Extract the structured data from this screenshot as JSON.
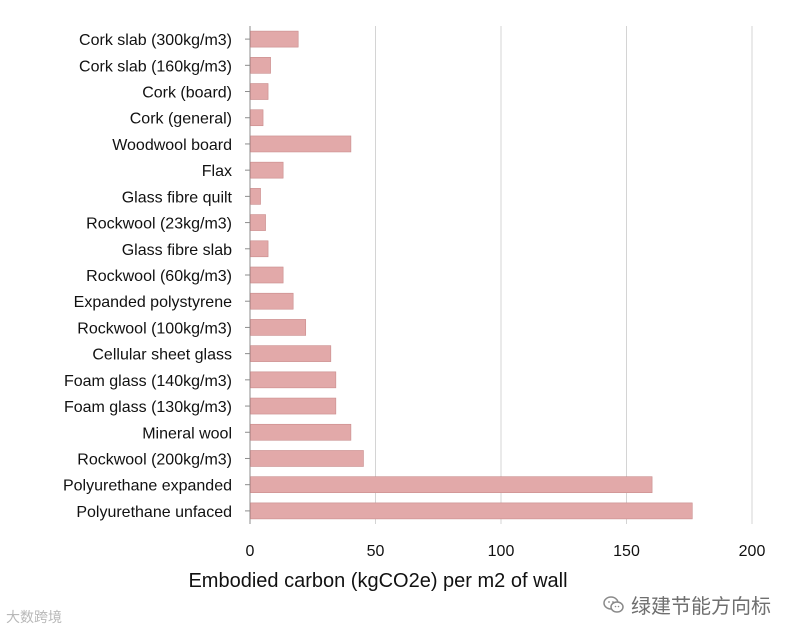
{
  "chart_data": {
    "type": "bar",
    "orientation": "horizontal",
    "categories": [
      "Cork slab (300kg/m3)",
      "Cork slab (160kg/m3)",
      "Cork (board)",
      "Cork (general)",
      "Woodwool board",
      "Flax",
      "Glass fibre quilt",
      "Rockwool (23kg/m3)",
      "Glass fibre slab",
      "Rockwool (60kg/m3)",
      "Expanded polystyrene",
      "Rockwool (100kg/m3)",
      "Cellular sheet glass",
      "Foam glass (140kg/m3)",
      "Foam glass (130kg/m3)",
      "Mineral wool",
      "Rockwool (200kg/m3)",
      "Polyurethane expanded",
      "Polyurethane unfaced"
    ],
    "values": [
      19,
      8,
      7,
      5,
      40,
      13,
      4,
      6,
      7,
      13,
      17,
      22,
      32,
      34,
      34,
      40,
      45,
      160,
      176
    ],
    "xlabel": "Embodied carbon (kgCO2e) per m2 of wall",
    "ylabel": "",
    "title": "",
    "xlim": [
      0,
      200
    ],
    "xticks": [
      0,
      50,
      100,
      150,
      200
    ],
    "grid": "vertical",
    "bar_color": "#e2a9a9",
    "bar_edge_color": "#c98c8c",
    "grid_color": "#d4d4d4"
  },
  "watermarks": {
    "left": "大数跨境",
    "right": "绿建节能方向标"
  }
}
